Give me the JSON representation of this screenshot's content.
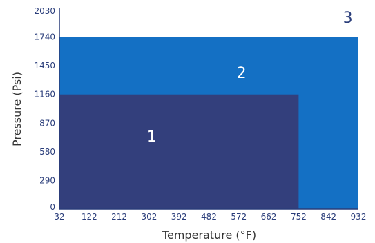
{
  "chart_data": {
    "type": "area",
    "xlabel": "Temperature (°F)",
    "ylabel": "Pressure (Psi)",
    "xlim": [
      32,
      932
    ],
    "ylim": [
      0,
      2030
    ],
    "x_ticks": [
      "32",
      "122",
      "212",
      "302",
      "392",
      "482",
      "572",
      "662",
      "752",
      "842",
      "932"
    ],
    "y_ticks": [
      "0",
      "290",
      "580",
      "870",
      "1160",
      "1450",
      "1740",
      "2030"
    ],
    "regions": [
      {
        "label": "3",
        "x_max": 932,
        "y_max": 2030,
        "color": "#ffffff",
        "label_x": 900,
        "label_y": 1940,
        "label_color": "#2a3d7a"
      },
      {
        "label": "2",
        "x_max": 932,
        "y_max": 1740,
        "color": "#1470c4",
        "label_x": 580,
        "label_y": 1380,
        "label_color": "#ffffff"
      },
      {
        "label": "1",
        "x_max": 752,
        "y_max": 1160,
        "color": "#333f7c",
        "label_x": 310,
        "label_y": 740,
        "label_color": "#ffffff"
      }
    ],
    "axis_color": "#2a3d7a"
  }
}
